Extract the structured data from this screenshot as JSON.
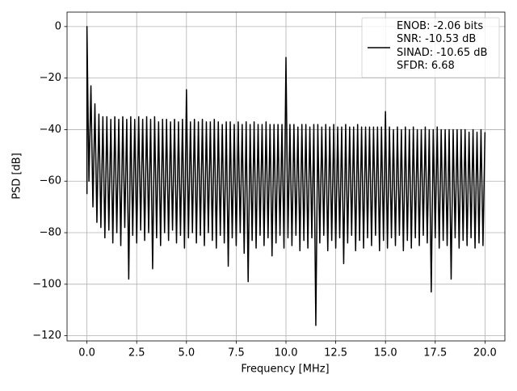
{
  "chart_data": {
    "type": "line",
    "xlabel": "Frequency [MHz]",
    "ylabel": "PSD [dB]",
    "xlim": [
      -1.0,
      21.0
    ],
    "ylim": [
      -122,
      5.6
    ],
    "xticks": [
      {
        "value": 0,
        "label": "0.0"
      },
      2.5,
      {
        "value": 5,
        "label": "5.0"
      },
      7.5,
      {
        "value": 10,
        "label": "10.0"
      },
      12.5,
      {
        "value": 15,
        "label": "15.0"
      },
      17.5,
      {
        "value": 20,
        "label": "20.0"
      }
    ],
    "yticks": [
      {
        "value": 0,
        "label": "0"
      },
      {
        "value": -20,
        "label": "−20"
      },
      {
        "value": -40,
        "label": "−40"
      },
      {
        "value": -60,
        "label": "−60"
      },
      {
        "value": -80,
        "label": "−80"
      },
      {
        "value": -100,
        "label": "−100"
      },
      {
        "value": -120,
        "label": "−120"
      }
    ],
    "grid": true,
    "legend": "upper right",
    "x": [
      0,
      0,
      0.1,
      0.2,
      0.3,
      0.4,
      0.5,
      0.6,
      0.7,
      0.8,
      0.9,
      1,
      1.1,
      1.2,
      1.3,
      1.4,
      1.5,
      1.6,
      1.7,
      1.8,
      1.9,
      2,
      2.1,
      2.2,
      2.3,
      2.4,
      2.5,
      2.6,
      2.7,
      2.8,
      2.9,
      3,
      3.1,
      3.2,
      3.3,
      3.4,
      3.5,
      3.6,
      3.7,
      3.8,
      3.9,
      4,
      4.1,
      4.2,
      4.3,
      4.4,
      4.5,
      4.6,
      4.7,
      4.8,
      4.9,
      5,
      5.1,
      5.2,
      5.3,
      5.4,
      5.5,
      5.6,
      5.7,
      5.8,
      5.9,
      6,
      6.1,
      6.2,
      6.3,
      6.4,
      6.5,
      6.6,
      6.7,
      6.8,
      6.9,
      7,
      7.1,
      7.2,
      7.3,
      7.4,
      7.5,
      7.6,
      7.7,
      7.8,
      7.9,
      8,
      8.1,
      8.2,
      8.3,
      8.4,
      8.5,
      8.6,
      8.7,
      8.8,
      8.9,
      9,
      9.1,
      9.2,
      9.3,
      9.4,
      9.5,
      9.6,
      9.7,
      9.8,
      9.9,
      10,
      10.1,
      10.2,
      10.3,
      10.4,
      10.5,
      10.6,
      10.7,
      10.8,
      10.9,
      11,
      11.1,
      11.2,
      11.3,
      11.4,
      11.5,
      11.6,
      11.7,
      11.8,
      11.9,
      12,
      12.1,
      12.2,
      12.3,
      12.4,
      12.5,
      12.6,
      12.7,
      12.8,
      12.9,
      13,
      13.1,
      13.2,
      13.3,
      13.4,
      13.5,
      13.6,
      13.7,
      13.8,
      13.9,
      14,
      14.1,
      14.2,
      14.3,
      14.4,
      14.5,
      14.6,
      14.7,
      14.8,
      14.9,
      15,
      15.1,
      15.2,
      15.3,
      15.4,
      15.5,
      15.6,
      15.7,
      15.8,
      15.9,
      16,
      16.1,
      16.2,
      16.3,
      16.4,
      16.5,
      16.6,
      16.7,
      16.8,
      16.9,
      17,
      17.1,
      17.2,
      17.3,
      17.4,
      17.5,
      17.6,
      17.7,
      17.8,
      17.9,
      18,
      18.1,
      18.2,
      18.3,
      18.4,
      18.5,
      18.6,
      18.7,
      18.8,
      18.9,
      19,
      19.1,
      19.2,
      19.3,
      19.4,
      19.5,
      19.6,
      19.7,
      19.8,
      19.9,
      20
    ],
    "series": [
      {
        "name": "ENOB: -2.06 bits\nSNR: -10.53 dB\nSINAD: -10.65 dB\nSFDR: 6.68",
        "color": "#000000",
        "values": [
          -65,
          0,
          -60,
          -23,
          -70,
          -30,
          -76,
          -34,
          -78,
          -35,
          -82,
          -35,
          -79,
          -36,
          -84,
          -35,
          -80,
          -36,
          -85,
          -35,
          -78,
          -36,
          -98,
          -35,
          -81,
          -36,
          -84,
          -35,
          -79,
          -36,
          -83,
          -35,
          -80,
          -36,
          -94,
          -35,
          -82,
          -37,
          -85,
          -36,
          -80,
          -36,
          -83,
          -37,
          -79,
          -36,
          -84,
          -37,
          -81,
          -36,
          -86,
          -24.5,
          -82,
          -37,
          -80,
          -36,
          -84,
          -37,
          -81,
          -36,
          -85,
          -37,
          -80,
          -37,
          -83,
          -36,
          -86,
          -37,
          -81,
          -38,
          -84,
          -37,
          -93,
          -37,
          -82,
          -38,
          -85,
          -37,
          -80,
          -38,
          -88,
          -37,
          -99,
          -38,
          -83,
          -37,
          -86,
          -38,
          -81,
          -38,
          -85,
          -37,
          -82,
          -38,
          -89,
          -38,
          -84,
          -38,
          -81,
          -38,
          -86,
          -12,
          -82,
          -38,
          -85,
          -38,
          -81,
          -39,
          -87,
          -38,
          -83,
          -38,
          -86,
          -39,
          -82,
          -38,
          -116,
          -38,
          -84,
          -39,
          -81,
          -38,
          -87,
          -39,
          -83,
          -38,
          -86,
          -39,
          -82,
          -39,
          -92,
          -38,
          -84,
          -39,
          -81,
          -39,
          -87,
          -38,
          -83,
          -39,
          -86,
          -39,
          -82,
          -39,
          -85,
          -39,
          -81,
          -39,
          -87,
          -39,
          -83,
          -33,
          -86,
          -39,
          -82,
          -40,
          -85,
          -39,
          -81,
          -40,
          -87,
          -39,
          -83,
          -40,
          -86,
          -39,
          -82,
          -40,
          -85,
          -40,
          -81,
          -39,
          -84,
          -40,
          -103,
          -40,
          -82,
          -39,
          -86,
          -40,
          -83,
          -40,
          -85,
          -40,
          -98,
          -40,
          -82,
          -40,
          -86,
          -40,
          -83,
          -40,
          -85,
          -41,
          -82,
          -40,
          -86,
          -41,
          -84,
          -40,
          -85,
          -41
        ]
      }
    ]
  }
}
